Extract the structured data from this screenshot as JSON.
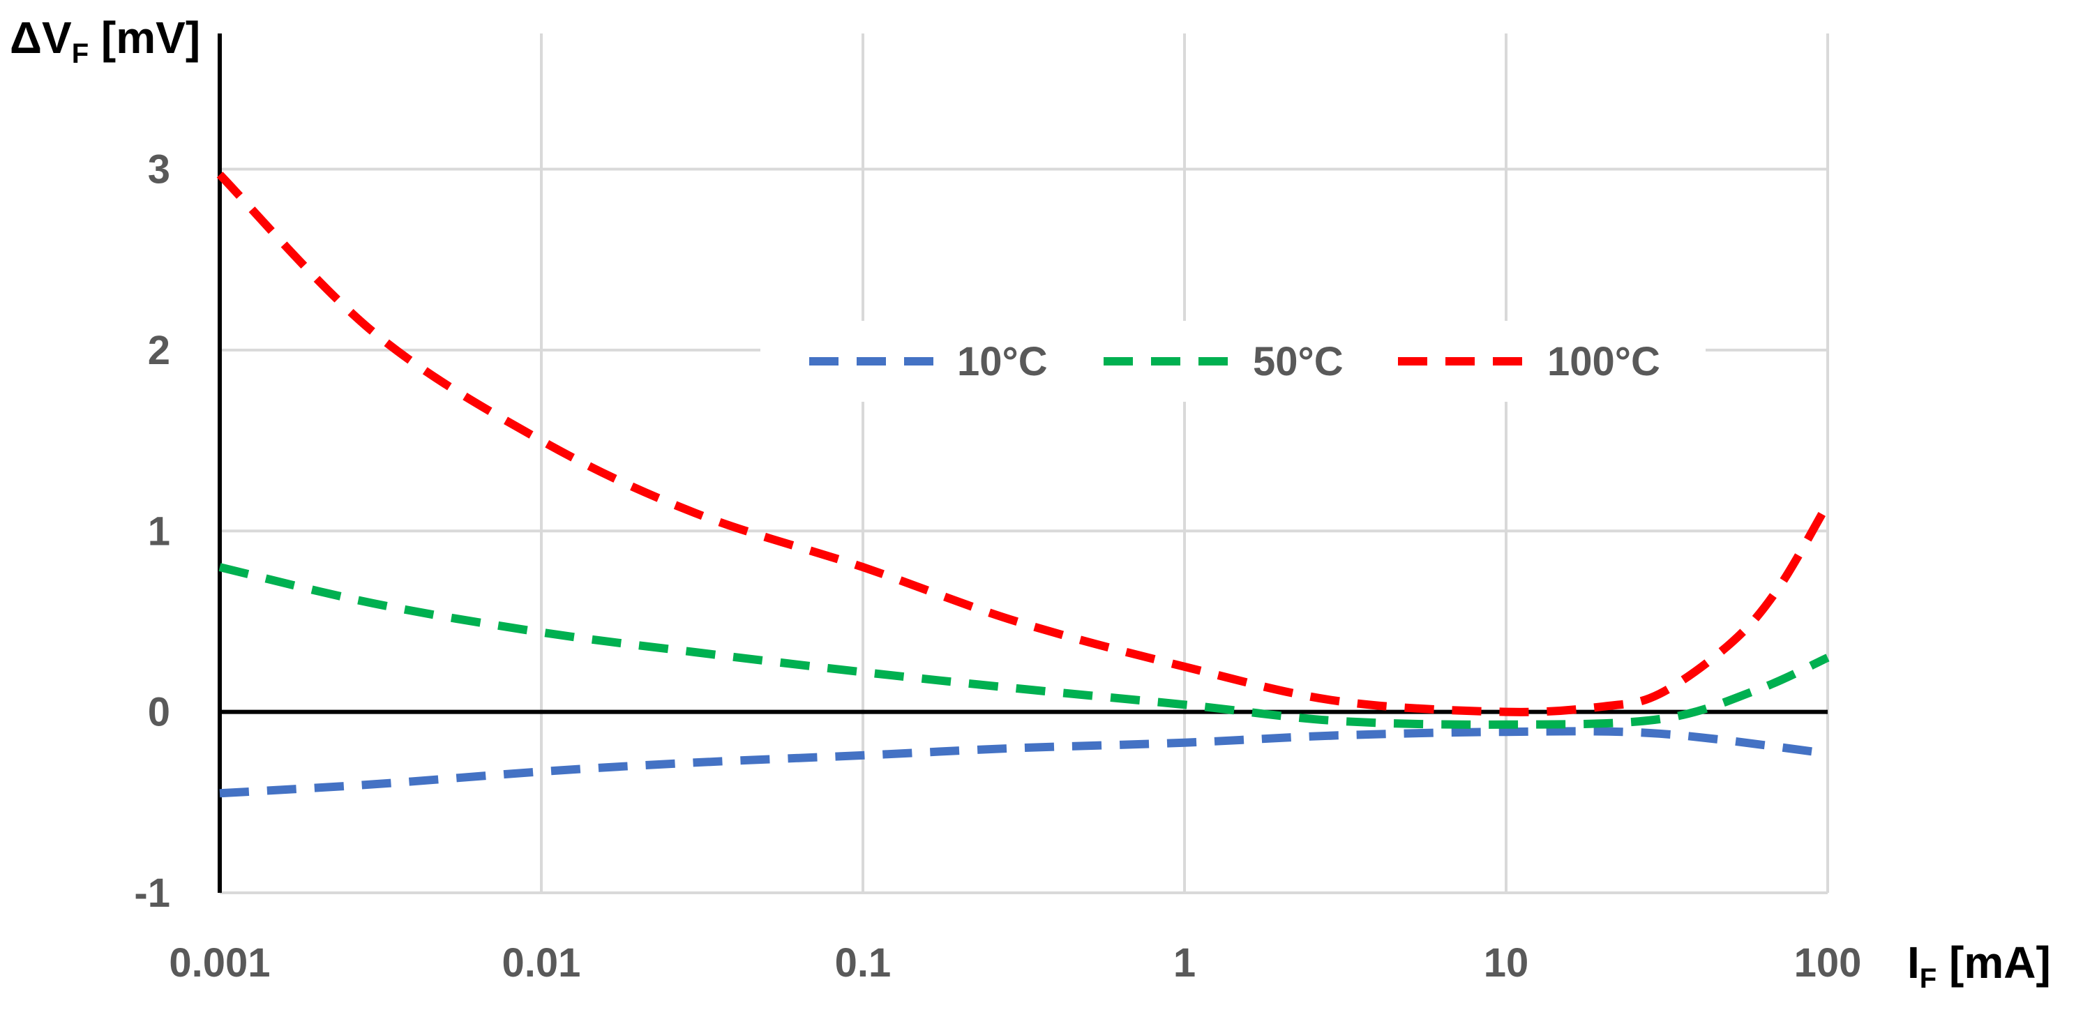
{
  "chart_data": {
    "type": "line",
    "x_scale": "log",
    "x_ticks": [
      "0.001",
      "0.01",
      "0.1",
      "1",
      "10",
      "100"
    ],
    "x_tick_values": [
      0.001,
      0.01,
      0.1,
      1,
      10,
      100
    ],
    "y_ticks": [
      "-1",
      "0",
      "1",
      "2",
      "3"
    ],
    "y_tick_values": [
      -1,
      0,
      1,
      2,
      3
    ],
    "xlim": [
      0.001,
      100
    ],
    "ylim": [
      -1,
      3.75
    ],
    "grid": true,
    "xlabel": {
      "main": "I",
      "sub": "F",
      "unit": " [mA]"
    },
    "ylabel": {
      "main": "ΔV",
      "sub": "F",
      "unit": " [mV]"
    },
    "legend_position": "top-right",
    "series": [
      {
        "name": "10°C",
        "color": "#4472C4",
        "x": [
          0.001,
          0.003,
          0.01,
          0.03,
          0.1,
          0.3,
          1,
          3,
          10,
          30,
          100
        ],
        "y": [
          -0.45,
          -0.4,
          -0.33,
          -0.28,
          -0.24,
          -0.2,
          -0.17,
          -0.13,
          -0.11,
          -0.12,
          -0.23
        ]
      },
      {
        "name": "50°C",
        "color": "#00B050",
        "x": [
          0.001,
          0.003,
          0.01,
          0.03,
          0.1,
          0.3,
          1,
          3,
          10,
          30,
          60,
          100
        ],
        "y": [
          0.8,
          0.6,
          0.44,
          0.33,
          0.22,
          0.13,
          0.04,
          -0.05,
          -0.07,
          -0.04,
          0.12,
          0.3
        ]
      },
      {
        "name": "100°C",
        "color": "#FF0000",
        "x": [
          0.001,
          0.003,
          0.01,
          0.03,
          0.1,
          0.3,
          1,
          3,
          10,
          20,
          30,
          50,
          70,
          100
        ],
        "y": [
          2.97,
          2.1,
          1.5,
          1.1,
          0.8,
          0.5,
          0.25,
          0.06,
          0.0,
          0.03,
          0.1,
          0.38,
          0.68,
          1.15
        ]
      }
    ]
  }
}
